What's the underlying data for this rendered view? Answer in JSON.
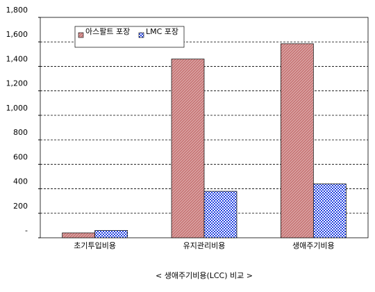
{
  "chart_data": {
    "type": "bar",
    "title": "< 생애주기비용(LCC) 비교 >",
    "categories": [
      "초기투입비용",
      "유지관리비용",
      "생애주기비용"
    ],
    "series": [
      {
        "name": "아스팔트 포장",
        "color": "#c87878",
        "values": [
          40,
          1460,
          1585
        ]
      },
      {
        "name": "LMC 포장",
        "color": "#2040e0",
        "values": [
          60,
          380,
          440
        ]
      }
    ],
    "ylim": [
      0,
      1800
    ],
    "yticks": [
      {
        "value": 0,
        "label": "-"
      },
      200,
      400,
      600,
      800,
      {
        "value": 1000,
        "label": "1,000"
      },
      {
        "value": 1200,
        "label": "1,200"
      },
      {
        "value": 1400,
        "label": "1,400"
      },
      {
        "value": 1600,
        "label": "1,600"
      },
      {
        "value": 1800,
        "label": "1,800"
      }
    ],
    "grid": true
  }
}
